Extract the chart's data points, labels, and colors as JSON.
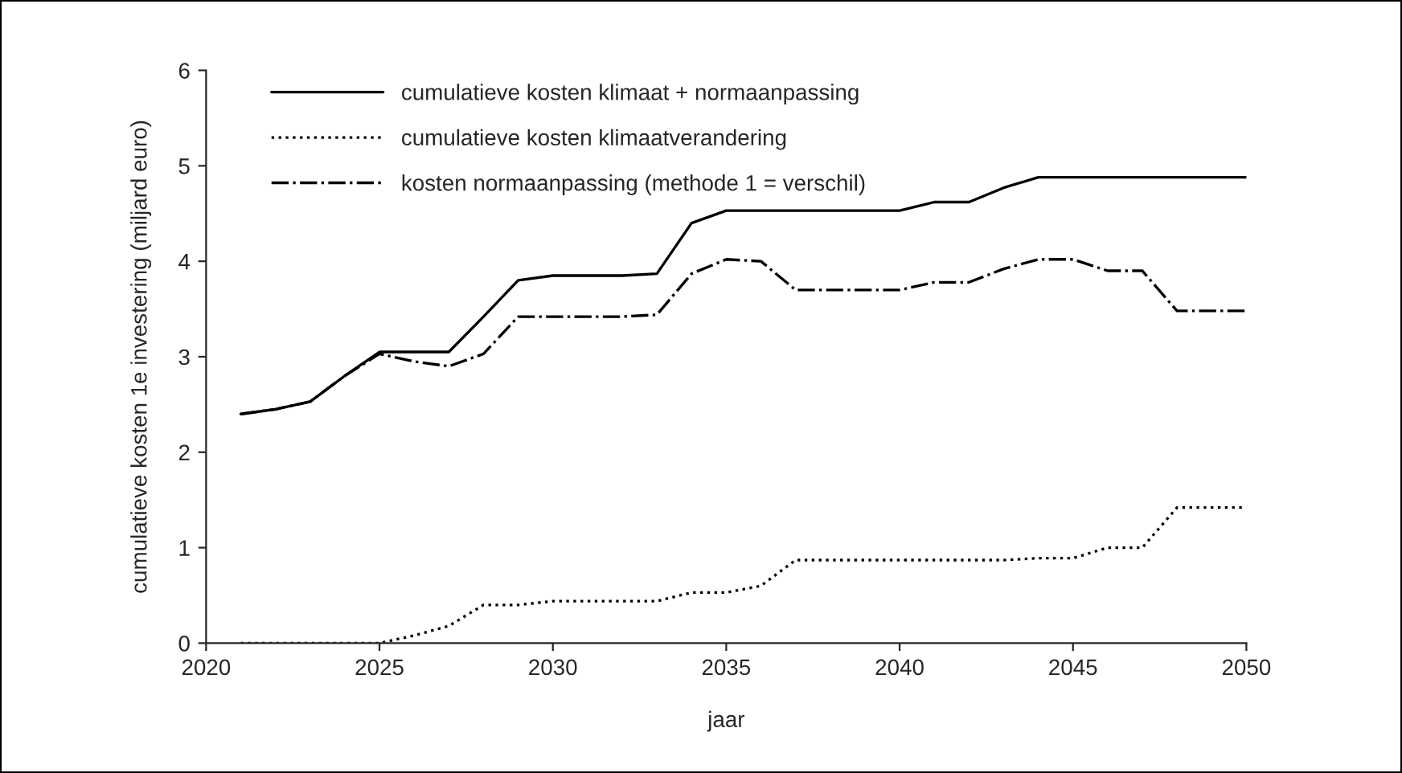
{
  "chart_data": {
    "type": "line",
    "xlabel": "jaar",
    "ylabel": "cumulatieve kosten 1e investering (miljard euro)",
    "x": [
      2021,
      2022,
      2023,
      2024,
      2025,
      2026,
      2027,
      2028,
      2029,
      2030,
      2031,
      2032,
      2033,
      2034,
      2035,
      2036,
      2037,
      2038,
      2039,
      2040,
      2041,
      2042,
      2043,
      2044,
      2045,
      2046,
      2047,
      2048,
      2049,
      2050
    ],
    "series": [
      {
        "name": "cumulatieve kosten klimaat + normaanpassing",
        "color": "#000000",
        "line_style": "solid",
        "values": [
          2.4,
          2.45,
          2.53,
          2.8,
          3.05,
          3.05,
          3.05,
          3.42,
          3.8,
          3.85,
          3.85,
          3.85,
          3.87,
          4.4,
          4.53,
          4.53,
          4.53,
          4.53,
          4.53,
          4.53,
          4.62,
          4.62,
          4.77,
          4.88,
          4.88,
          4.88,
          4.88,
          4.88,
          4.88,
          4.88
        ]
      },
      {
        "name": "cumulatieve kosten klimaatverandering",
        "color": "#000000",
        "line_style": "dotted",
        "values": [
          0,
          0,
          0,
          0,
          0,
          0.08,
          0.18,
          0.4,
          0.4,
          0.44,
          0.44,
          0.44,
          0.44,
          0.53,
          0.53,
          0.6,
          0.87,
          0.87,
          0.87,
          0.87,
          0.87,
          0.87,
          0.87,
          0.89,
          0.89,
          1.0,
          1.0,
          1.42,
          1.42,
          1.42
        ]
      },
      {
        "name": "kosten normaanpassing (methode 1 = verschil)",
        "color": "#000000",
        "line_style": "dashdot",
        "values": [
          2.4,
          2.45,
          2.53,
          2.8,
          3.03,
          2.95,
          2.9,
          3.03,
          3.42,
          3.42,
          3.42,
          3.42,
          3.44,
          3.87,
          4.02,
          4.0,
          3.7,
          3.7,
          3.7,
          3.7,
          3.78,
          3.78,
          3.92,
          4.02,
          4.02,
          3.9,
          3.9,
          3.48,
          3.48,
          3.48
        ]
      }
    ],
    "xlim": [
      2020,
      2050
    ],
    "xticks": [
      2020,
      2025,
      2030,
      2035,
      2040,
      2045,
      2050
    ],
    "ylim": [
      0,
      6
    ],
    "yticks": [
      0,
      1,
      2,
      3,
      4,
      5,
      6
    ],
    "grid": false,
    "legend": "top left"
  }
}
